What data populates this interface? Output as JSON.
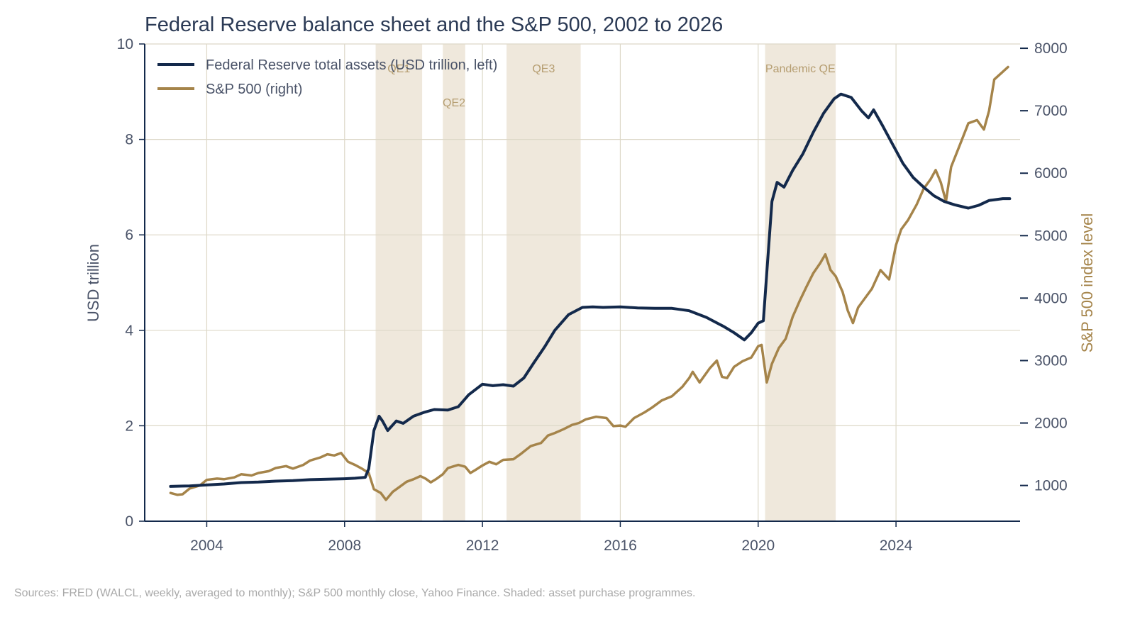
{
  "chart_data": {
    "type": "line",
    "title": "Federal Reserve balance sheet and the S&P 500, 2002 to 2026",
    "ylabel_left": "USD trillion",
    "ylabel_right": "S&P 500 index level",
    "xlim": [
      2002.2,
      2027.6
    ],
    "ylim_left": [
      0,
      10
    ],
    "ylim_right": [
      428,
      8069
    ],
    "x_ticks": [
      2004,
      2008,
      2012,
      2016,
      2020,
      2024
    ],
    "y_ticks_left": [
      0,
      2,
      4,
      6,
      8,
      10
    ],
    "y_ticks_right": [
      1000,
      2000,
      3000,
      4000,
      5000,
      6000,
      7000,
      8000
    ],
    "grid": true,
    "legend_position": "top-left",
    "colors": {
      "fed": "#13294b",
      "spx": "#a5844a",
      "band": "#efe8dc",
      "band_label": "#b59d70",
      "grid": "#ddd8c8",
      "axis": "#13294b"
    },
    "shaded_periods": [
      {
        "label": "QE1",
        "start": 2008.9,
        "end": 2010.25
      },
      {
        "label": "QE2",
        "start": 2010.85,
        "end": 2011.5
      },
      {
        "label": "QE3",
        "start": 2012.7,
        "end": 2014.85
      },
      {
        "label": "Pandemic QE",
        "start": 2020.2,
        "end": 2022.25
      }
    ],
    "series": [
      {
        "name": "Federal Reserve total assets (USD trillion, left)",
        "axis": "left",
        "points": [
          [
            2002.95,
            0.73
          ],
          [
            2003.5,
            0.74
          ],
          [
            2004,
            0.76
          ],
          [
            2004.5,
            0.78
          ],
          [
            2005,
            0.81
          ],
          [
            2005.5,
            0.82
          ],
          [
            2006,
            0.84
          ],
          [
            2006.5,
            0.85
          ],
          [
            2007,
            0.87
          ],
          [
            2007.5,
            0.88
          ],
          [
            2008,
            0.89
          ],
          [
            2008.3,
            0.9
          ],
          [
            2008.6,
            0.92
          ],
          [
            2008.7,
            1.1
          ],
          [
            2008.85,
            1.9
          ],
          [
            2009,
            2.2
          ],
          [
            2009.1,
            2.1
          ],
          [
            2009.25,
            1.9
          ],
          [
            2009.5,
            2.1
          ],
          [
            2009.7,
            2.05
          ],
          [
            2010,
            2.2
          ],
          [
            2010.3,
            2.28
          ],
          [
            2010.6,
            2.34
          ],
          [
            2011,
            2.33
          ],
          [
            2011.3,
            2.4
          ],
          [
            2011.6,
            2.65
          ],
          [
            2012,
            2.87
          ],
          [
            2012.3,
            2.84
          ],
          [
            2012.6,
            2.86
          ],
          [
            2012.9,
            2.83
          ],
          [
            2013.2,
            3.0
          ],
          [
            2013.5,
            3.33
          ],
          [
            2013.8,
            3.65
          ],
          [
            2014.1,
            4.0
          ],
          [
            2014.5,
            4.33
          ],
          [
            2014.9,
            4.48
          ],
          [
            2015.2,
            4.49
          ],
          [
            2015.5,
            4.48
          ],
          [
            2016,
            4.49
          ],
          [
            2016.5,
            4.47
          ],
          [
            2017,
            4.46
          ],
          [
            2017.5,
            4.46
          ],
          [
            2018,
            4.41
          ],
          [
            2018.5,
            4.27
          ],
          [
            2019,
            4.08
          ],
          [
            2019.3,
            3.95
          ],
          [
            2019.6,
            3.8
          ],
          [
            2019.8,
            3.95
          ],
          [
            2020,
            4.15
          ],
          [
            2020.15,
            4.2
          ],
          [
            2020.25,
            5.2
          ],
          [
            2020.4,
            6.7
          ],
          [
            2020.55,
            7.1
          ],
          [
            2020.75,
            7.0
          ],
          [
            2021,
            7.35
          ],
          [
            2021.3,
            7.7
          ],
          [
            2021.6,
            8.15
          ],
          [
            2021.9,
            8.55
          ],
          [
            2022.2,
            8.85
          ],
          [
            2022.4,
            8.95
          ],
          [
            2022.7,
            8.88
          ],
          [
            2023,
            8.6
          ],
          [
            2023.2,
            8.45
          ],
          [
            2023.35,
            8.62
          ],
          [
            2023.6,
            8.3
          ],
          [
            2023.9,
            7.9
          ],
          [
            2024.2,
            7.5
          ],
          [
            2024.5,
            7.2
          ],
          [
            2024.8,
            7.0
          ],
          [
            2025.1,
            6.82
          ],
          [
            2025.4,
            6.7
          ],
          [
            2025.7,
            6.63
          ],
          [
            2026.1,
            6.56
          ],
          [
            2026.4,
            6.62
          ],
          [
            2026.7,
            6.72
          ],
          [
            2027.1,
            6.76
          ],
          [
            2027.3,
            6.76
          ]
        ]
      },
      {
        "name": "S&P 500 (right)",
        "axis": "right",
        "points": [
          [
            2002.95,
            880
          ],
          [
            2003.15,
            850
          ],
          [
            2003.3,
            860
          ],
          [
            2003.5,
            950
          ],
          [
            2003.8,
            1000
          ],
          [
            2004,
            1090
          ],
          [
            2004.3,
            1110
          ],
          [
            2004.5,
            1100
          ],
          [
            2004.8,
            1130
          ],
          [
            2005,
            1180
          ],
          [
            2005.3,
            1160
          ],
          [
            2005.5,
            1200
          ],
          [
            2005.8,
            1230
          ],
          [
            2006,
            1280
          ],
          [
            2006.3,
            1310
          ],
          [
            2006.5,
            1270
          ],
          [
            2006.8,
            1330
          ],
          [
            2007,
            1400
          ],
          [
            2007.3,
            1450
          ],
          [
            2007.5,
            1500
          ],
          [
            2007.7,
            1480
          ],
          [
            2007.9,
            1520
          ],
          [
            2008.1,
            1380
          ],
          [
            2008.3,
            1330
          ],
          [
            2008.5,
            1270
          ],
          [
            2008.7,
            1200
          ],
          [
            2008.85,
            940
          ],
          [
            2009.05,
            880
          ],
          [
            2009.2,
            770
          ],
          [
            2009.4,
            900
          ],
          [
            2009.6,
            980
          ],
          [
            2009.8,
            1060
          ],
          [
            2010,
            1100
          ],
          [
            2010.2,
            1150
          ],
          [
            2010.35,
            1110
          ],
          [
            2010.5,
            1050
          ],
          [
            2010.65,
            1100
          ],
          [
            2010.85,
            1180
          ],
          [
            2011,
            1280
          ],
          [
            2011.3,
            1330
          ],
          [
            2011.5,
            1300
          ],
          [
            2011.65,
            1200
          ],
          [
            2011.8,
            1250
          ],
          [
            2012,
            1320
          ],
          [
            2012.2,
            1380
          ],
          [
            2012.4,
            1340
          ],
          [
            2012.6,
            1410
          ],
          [
            2012.9,
            1420
          ],
          [
            2013.1,
            1500
          ],
          [
            2013.4,
            1630
          ],
          [
            2013.7,
            1680
          ],
          [
            2013.9,
            1800
          ],
          [
            2014.1,
            1840
          ],
          [
            2014.35,
            1900
          ],
          [
            2014.6,
            1970
          ],
          [
            2014.8,
            2000
          ],
          [
            2015,
            2060
          ],
          [
            2015.3,
            2100
          ],
          [
            2015.6,
            2080
          ],
          [
            2015.8,
            1950
          ],
          [
            2016,
            1960
          ],
          [
            2016.15,
            1940
          ],
          [
            2016.4,
            2080
          ],
          [
            2016.7,
            2170
          ],
          [
            2016.9,
            2240
          ],
          [
            2017.2,
            2360
          ],
          [
            2017.5,
            2430
          ],
          [
            2017.8,
            2580
          ],
          [
            2018,
            2720
          ],
          [
            2018.1,
            2820
          ],
          [
            2018.3,
            2650
          ],
          [
            2018.6,
            2880
          ],
          [
            2018.8,
            3000
          ],
          [
            2018.95,
            2740
          ],
          [
            2019.1,
            2720
          ],
          [
            2019.3,
            2900
          ],
          [
            2019.55,
            2990
          ],
          [
            2019.8,
            3050
          ],
          [
            2020,
            3230
          ],
          [
            2020.1,
            3250
          ],
          [
            2020.25,
            2650
          ],
          [
            2020.4,
            2950
          ],
          [
            2020.6,
            3200
          ],
          [
            2020.8,
            3350
          ],
          [
            2021,
            3700
          ],
          [
            2021.2,
            3950
          ],
          [
            2021.4,
            4180
          ],
          [
            2021.6,
            4400
          ],
          [
            2021.8,
            4560
          ],
          [
            2021.95,
            4700
          ],
          [
            2022.1,
            4450
          ],
          [
            2022.25,
            4350
          ],
          [
            2022.45,
            4100
          ],
          [
            2022.6,
            3800
          ],
          [
            2022.75,
            3600
          ],
          [
            2022.9,
            3850
          ],
          [
            2023.1,
            4000
          ],
          [
            2023.3,
            4150
          ],
          [
            2023.55,
            4450
          ],
          [
            2023.8,
            4300
          ],
          [
            2024,
            4850
          ],
          [
            2024.15,
            5100
          ],
          [
            2024.35,
            5250
          ],
          [
            2024.6,
            5500
          ],
          [
            2024.8,
            5750
          ],
          [
            2025,
            5900
          ],
          [
            2025.15,
            6050
          ],
          [
            2025.3,
            5850
          ],
          [
            2025.45,
            5550
          ],
          [
            2025.6,
            6100
          ],
          [
            2025.85,
            6450
          ],
          [
            2026.1,
            6800
          ],
          [
            2026.35,
            6850
          ],
          [
            2026.55,
            6700
          ],
          [
            2026.7,
            7000
          ],
          [
            2026.85,
            7500
          ],
          [
            2027.05,
            7600
          ],
          [
            2027.25,
            7700
          ]
        ]
      }
    ]
  },
  "source_note": "Sources: FRED (WALCL, weekly, averaged to monthly); S&P 500 monthly close, Yahoo Finance. Shaded: asset purchase programmes."
}
